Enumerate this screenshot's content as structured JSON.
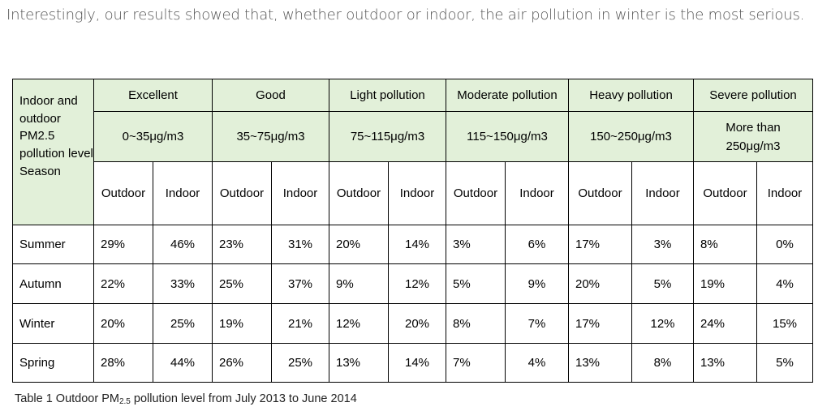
{
  "intro_text": "Interestingly, our results showed that, whether outdoor or indoor, the air pollution in winter is the most serious.",
  "table": {
    "corner_label": "Indoor and outdoor PM2.5 pollution level",
    "season_label": "Season",
    "levels": [
      {
        "name": "Excellent",
        "range": "0~35μg/m3"
      },
      {
        "name": "Good",
        "range": "35~75μg/m3"
      },
      {
        "name": "Light pollution",
        "range": "75~115μg/m3"
      },
      {
        "name": "Moderate pollution",
        "range": "115~150μg/m3"
      },
      {
        "name": "Heavy pollution",
        "range": "150~250μg/m3"
      },
      {
        "name": "Severe pollution",
        "range": "More than 250μg/m3"
      }
    ],
    "sub_headers": [
      "Outdoor",
      "Indoor"
    ],
    "rows": [
      {
        "season": "Summer",
        "values": [
          "29%",
          "46%",
          "23%",
          "31%",
          "20%",
          "14%",
          "3%",
          "6%",
          "17%",
          "3%",
          "8%",
          "0%"
        ]
      },
      {
        "season": "Autumn",
        "values": [
          "22%",
          "33%",
          "25%",
          "37%",
          "9%",
          "12%",
          "5%",
          "9%",
          "20%",
          "5%",
          "19%",
          "4%"
        ]
      },
      {
        "season": "Winter",
        "values": [
          "20%",
          "25%",
          "19%",
          "21%",
          "12%",
          "20%",
          "8%",
          "7%",
          "17%",
          "12%",
          "24%",
          "15%"
        ]
      },
      {
        "season": "Spring",
        "values": [
          "28%",
          "44%",
          "26%",
          "25%",
          "13%",
          "14%",
          "7%",
          "4%",
          "13%",
          "8%",
          "13%",
          "5%"
        ]
      }
    ]
  },
  "caption": {
    "prefix": "Table 1 Outdoor PM",
    "subscript": "2.5",
    "suffix": " pollution level from July 2013 to June 2014"
  },
  "colors": {
    "header_bg": "#e2f0d9",
    "border": "#000000",
    "intro_text": "#555555"
  }
}
